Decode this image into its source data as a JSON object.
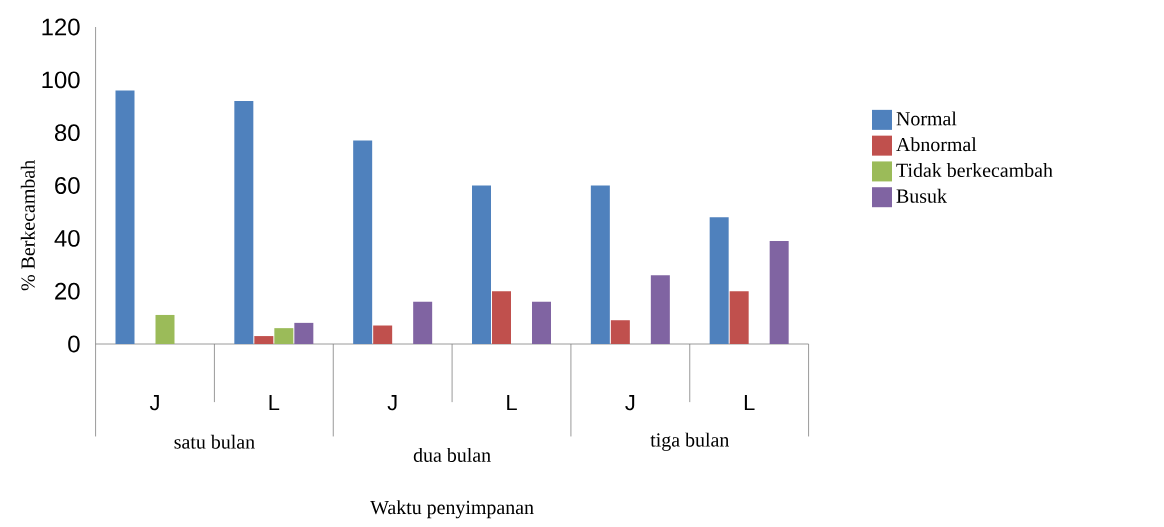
{
  "chart_data": {
    "type": "bar",
    "ylabel": "% Berkecambah",
    "xlabel": "Waktu penyimpanan",
    "categories": [
      "J",
      "L",
      "J",
      "L",
      "J",
      "L"
    ],
    "annotations": [
      "satu bulan",
      "dua bulan",
      "tiga bulan"
    ],
    "series": [
      {
        "name": "Normal",
        "color": "#4f81bd",
        "values": [
          96,
          92,
          77,
          60,
          60,
          48
        ]
      },
      {
        "name": "Abnormal",
        "color": "#c0504d",
        "values": [
          0,
          3,
          7,
          20,
          9,
          20
        ]
      },
      {
        "name": "Tidak berkecambah",
        "color": "#9bbb59",
        "values": [
          11,
          6,
          0,
          0,
          0,
          0
        ]
      },
      {
        "name": "Busuk",
        "color": "#8064a2",
        "values": [
          0,
          8,
          16,
          16,
          26,
          39
        ]
      }
    ],
    "ylim": [
      0,
      120
    ],
    "yticks": [
      0,
      20,
      40,
      60,
      80,
      100,
      120
    ],
    "grid": false,
    "legend": "right"
  }
}
